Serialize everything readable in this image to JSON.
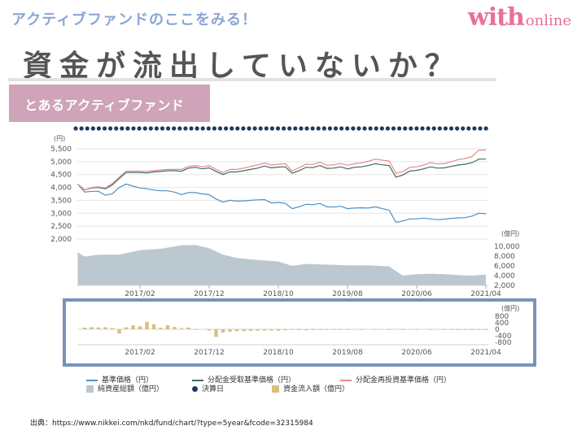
{
  "header": {
    "eyebrow": "アクティブファンドのここをみる！",
    "logo_with": "with",
    "logo_online": "online",
    "headline": "資金が流出していないか？",
    "badge": "とあるアクティブファンド"
  },
  "colors": {
    "base_price": "#4a90c8",
    "dividend_price": "#3a7060",
    "reinvest_price": "#e88a8a",
    "net_assets": "#bcc8d0",
    "settlement": "#1e3a60",
    "flow": "#d8c080",
    "frame": "#7893b8"
  },
  "chart_data": {
    "type": "line",
    "x_tick_labels": [
      "2017/02",
      "2017/12",
      "2018/10",
      "2019/08",
      "2020/06",
      "2021/04"
    ],
    "x_tick_positions_months": [
      0,
      10,
      20,
      30,
      40,
      50
    ],
    "price_panel": {
      "unit_label": "(円)",
      "ylim": [
        2000,
        5800
      ],
      "y_ticks": [
        2000,
        2500,
        3000,
        3500,
        4000,
        4500,
        5000,
        5500
      ],
      "y_tick_labels": [
        "2,000",
        "2,500",
        "3,000",
        "3,500",
        "4,000",
        "4,500",
        "5,000",
        "5,500"
      ],
      "x_months": [
        -9,
        -8,
        -7,
        -6,
        -5,
        -4,
        -3,
        -2,
        -1,
        0,
        1,
        2,
        3,
        4,
        5,
        6,
        7,
        8,
        9,
        10,
        11,
        12,
        13,
        14,
        15,
        16,
        17,
        18,
        19,
        20,
        21,
        22,
        23,
        24,
        25,
        26,
        27,
        28,
        29,
        30,
        31,
        32,
        33,
        34,
        35,
        36,
        37,
        38,
        39,
        40,
        41,
        42,
        43,
        44,
        45,
        46,
        47,
        48,
        49,
        50
      ],
      "series": [
        {
          "name": "基準価格（円）",
          "values": [
            4130,
            3820,
            3850,
            3850,
            3700,
            3750,
            4000,
            4130,
            4050,
            3980,
            3950,
            3900,
            3870,
            3870,
            3820,
            3720,
            3800,
            3800,
            3750,
            3720,
            3550,
            3430,
            3500,
            3470,
            3480,
            3500,
            3520,
            3530,
            3400,
            3420,
            3380,
            3180,
            3250,
            3350,
            3330,
            3380,
            3250,
            3240,
            3270,
            3180,
            3200,
            3210,
            3200,
            3250,
            3180,
            3120,
            2650,
            2700,
            2780,
            2780,
            2810,
            2780,
            2750,
            2770,
            2800,
            2820,
            2830,
            2890,
            3000,
            2980
          ]
        },
        {
          "name": "分配金受取基準価格（円）",
          "values": [
            4130,
            3900,
            3980,
            4000,
            3950,
            4100,
            4350,
            4580,
            4580,
            4580,
            4560,
            4600,
            4620,
            4650,
            4650,
            4630,
            4750,
            4780,
            4720,
            4760,
            4620,
            4500,
            4600,
            4600,
            4650,
            4700,
            4750,
            4830,
            4760,
            4790,
            4800,
            4550,
            4650,
            4780,
            4770,
            4850,
            4740,
            4750,
            4800,
            4720,
            4780,
            4800,
            4850,
            4920,
            4880,
            4850,
            4400,
            4480,
            4640,
            4660,
            4720,
            4800,
            4750,
            4760,
            4820,
            4870,
            4900,
            4960,
            5100,
            5100
          ]
        },
        {
          "name": "分配金再投資基準価格（円）",
          "values": [
            4130,
            3900,
            4000,
            4020,
            3980,
            4150,
            4400,
            4630,
            4630,
            4630,
            4620,
            4650,
            4680,
            4700,
            4700,
            4700,
            4820,
            4850,
            4800,
            4850,
            4700,
            4580,
            4700,
            4700,
            4750,
            4820,
            4870,
            4950,
            4870,
            4900,
            4920,
            4640,
            4770,
            4900,
            4890,
            4980,
            4860,
            4880,
            4930,
            4860,
            4920,
            4950,
            5010,
            5100,
            5060,
            5030,
            4550,
            4620,
            4780,
            4800,
            4870,
            4960,
            4910,
            4930,
            5000,
            5080,
            5120,
            5200,
            5450,
            5450
          ]
        }
      ],
      "settlement_dates_label": "決算日"
    },
    "net_assets_panel": {
      "name": "純資産総額（億円）",
      "unit_label": "(億円)",
      "ylim": [
        2000,
        11500
      ],
      "y_ticks": [
        2000,
        4000,
        6000,
        8000,
        10000
      ],
      "y_tick_labels": [
        "2,000",
        "4,000",
        "6,000",
        "8,000",
        "10,000"
      ],
      "x_months": [
        -9,
        -8,
        -6,
        -3,
        0,
        3,
        6,
        8,
        10,
        12,
        14,
        17,
        20,
        22,
        24,
        26,
        28,
        30,
        33,
        36,
        38,
        40,
        42,
        44,
        46,
        48,
        50
      ],
      "values": [
        8800,
        7900,
        8300,
        8300,
        9200,
        9500,
        10200,
        10300,
        9600,
        8300,
        7600,
        7200,
        6900,
        6000,
        6400,
        6300,
        6200,
        6100,
        6100,
        5900,
        4000,
        4300,
        4400,
        4300,
        4100,
        4000,
        4200
      ]
    },
    "flow_panel": {
      "name": "資金流入額（億円）",
      "unit_label": "(億円)",
      "ylim": [
        -900,
        900
      ],
      "y_ticks": [
        800,
        400,
        0,
        -400,
        -800
      ],
      "y_tick_labels": [
        "800",
        "400",
        "0",
        "-400",
        "-800"
      ],
      "x_months": [
        -8,
        -7,
        -6,
        -5,
        -4,
        -3,
        -2,
        -1,
        0,
        1,
        2,
        3,
        4,
        5,
        6,
        7,
        8,
        10,
        11,
        12,
        13,
        14,
        15,
        16,
        17,
        18,
        19,
        20,
        21,
        22,
        23,
        24,
        25,
        26,
        27,
        28,
        29,
        30,
        32,
        34,
        36,
        38,
        40,
        42,
        44,
        45,
        46,
        47,
        48,
        49,
        50
      ],
      "values": [
        100,
        130,
        110,
        120,
        80,
        -260,
        120,
        240,
        180,
        460,
        300,
        100,
        250,
        140,
        70,
        110,
        -20,
        -80,
        -470,
        -200,
        -150,
        -120,
        -110,
        -100,
        -90,
        -80,
        -80,
        -90,
        -60,
        -40,
        -50,
        -60,
        -50,
        -40,
        -40,
        -30,
        -20,
        -30,
        -20,
        -20,
        -30,
        -20,
        -30,
        -30,
        -20,
        -20,
        -30,
        -20,
        -20,
        -20,
        -30
      ]
    }
  },
  "legend": {
    "row1": [
      "基準価格（円）",
      "分配金受取基準価格（円）",
      "分配金再投資基準価格（円）"
    ],
    "row2": [
      "純資産総額（億円）",
      "決算日",
      "資金流入額（億円）"
    ]
  },
  "source": "出典：https://www.nikkei.com/nkd/fund/chart/?type=5year&fcode=32315984"
}
